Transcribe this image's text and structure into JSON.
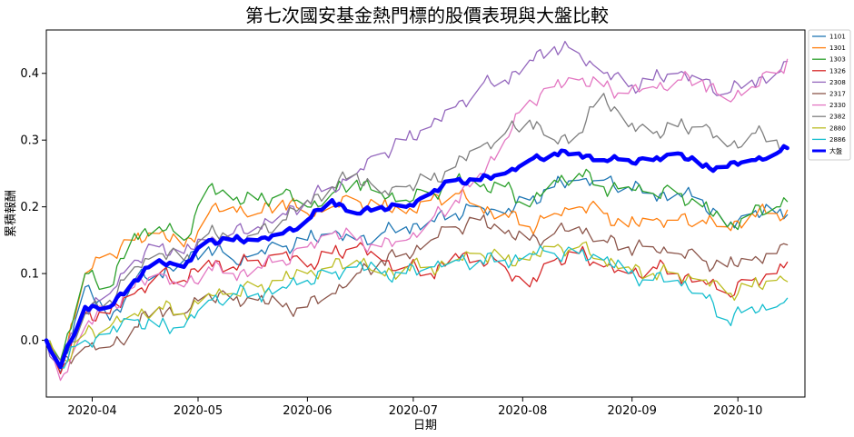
{
  "chart_data": {
    "type": "line",
    "title": "第七次國安基金熱門標的股價表現與大盤比較",
    "xlabel": "日期",
    "ylabel": "累積報酬",
    "x_ticks": [
      "2020-04",
      "2020-05",
      "2020-06",
      "2020-07",
      "2020-08",
      "2020-09",
      "2020-10"
    ],
    "y_ticks": [
      "0.0",
      "0.1",
      "0.2",
      "0.3",
      "0.4"
    ],
    "ylim": [
      -0.085,
      0.465
    ],
    "x_range": [
      "2020-03-19",
      "2020-10-20"
    ],
    "grid": false,
    "legend_position": "right",
    "dates": [
      "2020-03-19",
      "2020-03-23",
      "2020-03-30",
      "2020-04-06",
      "2020-04-13",
      "2020-04-20",
      "2020-04-27",
      "2020-05-04",
      "2020-05-11",
      "2020-05-18",
      "2020-05-25",
      "2020-06-01",
      "2020-06-08",
      "2020-06-15",
      "2020-06-22",
      "2020-06-29",
      "2020-07-06",
      "2020-07-13",
      "2020-07-20",
      "2020-07-27",
      "2020-08-03",
      "2020-08-10",
      "2020-08-17",
      "2020-08-24",
      "2020-08-31",
      "2020-09-07",
      "2020-09-14",
      "2020-09-21",
      "2020-09-28",
      "2020-10-05",
      "2020-10-12",
      "2020-10-15"
    ],
    "series": [
      {
        "name": "1101",
        "color": "#1f77b4",
        "width": 1.3,
        "values": [
          0.0,
          -0.05,
          0.08,
          0.03,
          0.09,
          0.1,
          0.12,
          0.14,
          0.12,
          0.13,
          0.14,
          0.15,
          0.16,
          0.15,
          0.16,
          0.17,
          0.18,
          0.19,
          0.2,
          0.19,
          0.21,
          0.23,
          0.24,
          0.24,
          0.23,
          0.22,
          0.22,
          0.21,
          0.17,
          0.19,
          0.19,
          0.188
        ]
      },
      {
        "name": "1301",
        "color": "#ff7f0e",
        "width": 1.3,
        "values": [
          0.0,
          -0.04,
          0.1,
          0.13,
          0.15,
          0.16,
          0.14,
          0.19,
          0.2,
          0.19,
          0.21,
          0.19,
          0.2,
          0.21,
          0.2,
          0.19,
          0.21,
          0.22,
          0.2,
          0.19,
          0.17,
          0.19,
          0.2,
          0.19,
          0.17,
          0.18,
          0.18,
          0.18,
          0.17,
          0.19,
          0.19,
          0.195
        ]
      },
      {
        "name": "1303",
        "color": "#2ca02c",
        "width": 1.3,
        "values": [
          0.0,
          -0.03,
          0.1,
          0.08,
          0.16,
          0.17,
          0.15,
          0.23,
          0.21,
          0.21,
          0.22,
          0.2,
          0.22,
          0.24,
          0.22,
          0.21,
          0.22,
          0.24,
          0.23,
          0.23,
          0.2,
          0.24,
          0.25,
          0.23,
          0.23,
          0.22,
          0.22,
          0.2,
          0.17,
          0.19,
          0.2,
          0.208
        ]
      },
      {
        "name": "1326",
        "color": "#d62728",
        "width": 1.3,
        "values": [
          0.0,
          -0.05,
          0.04,
          0.04,
          0.07,
          0.1,
          0.09,
          0.12,
          0.11,
          0.12,
          0.13,
          0.11,
          0.13,
          0.14,
          0.12,
          0.11,
          0.1,
          0.13,
          0.12,
          0.11,
          0.08,
          0.12,
          0.13,
          0.11,
          0.1,
          0.11,
          0.1,
          0.09,
          0.07,
          0.09,
          0.1,
          0.117
        ]
      },
      {
        "name": "2308",
        "color": "#9467bd",
        "width": 1.3,
        "values": [
          0.0,
          -0.04,
          0.05,
          0.07,
          0.12,
          0.14,
          0.13,
          0.15,
          0.16,
          0.17,
          0.19,
          0.21,
          0.23,
          0.25,
          0.28,
          0.3,
          0.32,
          0.35,
          0.38,
          0.39,
          0.42,
          0.44,
          0.43,
          0.4,
          0.38,
          0.39,
          0.4,
          0.39,
          0.37,
          0.39,
          0.4,
          0.418
        ]
      },
      {
        "name": "2317",
        "color": "#8c564b",
        "width": 1.3,
        "values": [
          0.0,
          -0.04,
          -0.01,
          -0.01,
          0.02,
          0.05,
          0.04,
          0.07,
          0.06,
          0.06,
          0.05,
          0.05,
          0.07,
          0.1,
          0.12,
          0.13,
          0.15,
          0.17,
          0.18,
          0.16,
          0.15,
          0.16,
          0.17,
          0.15,
          0.14,
          0.14,
          0.13,
          0.12,
          0.11,
          0.12,
          0.13,
          0.143
        ]
      },
      {
        "name": "2330",
        "color": "#e377c2",
        "width": 1.3,
        "values": [
          0.0,
          -0.06,
          0.02,
          0.05,
          0.08,
          0.1,
          0.08,
          0.11,
          0.1,
          0.11,
          0.12,
          0.14,
          0.16,
          0.15,
          0.14,
          0.15,
          0.18,
          0.21,
          0.25,
          0.3,
          0.36,
          0.38,
          0.39,
          0.38,
          0.37,
          0.38,
          0.39,
          0.39,
          0.36,
          0.38,
          0.4,
          0.421
        ]
      },
      {
        "name": "2382",
        "color": "#7f7f7f",
        "width": 1.3,
        "values": [
          0.0,
          -0.03,
          0.04,
          0.06,
          0.11,
          0.13,
          0.12,
          0.16,
          0.15,
          0.16,
          0.18,
          0.21,
          0.23,
          0.25,
          0.22,
          0.23,
          0.24,
          0.26,
          0.29,
          0.31,
          0.33,
          0.3,
          0.31,
          0.37,
          0.32,
          0.31,
          0.32,
          0.32,
          0.29,
          0.31,
          0.3,
          0.288
        ]
      },
      {
        "name": "2880",
        "color": "#bcbd22",
        "width": 1.3,
        "values": [
          0.0,
          -0.04,
          0.01,
          0.02,
          0.04,
          0.05,
          0.04,
          0.07,
          0.07,
          0.08,
          0.09,
          0.1,
          0.11,
          0.12,
          0.1,
          0.11,
          0.11,
          0.12,
          0.13,
          0.12,
          0.12,
          0.14,
          0.14,
          0.12,
          0.11,
          0.1,
          0.1,
          0.09,
          0.07,
          0.08,
          0.09,
          0.088
        ]
      },
      {
        "name": "2886",
        "color": "#17becf",
        "width": 1.3,
        "values": [
          0.0,
          -0.04,
          0.0,
          0.01,
          0.03,
          0.02,
          0.02,
          0.06,
          0.07,
          0.07,
          0.08,
          0.09,
          0.1,
          0.11,
          0.1,
          0.1,
          0.11,
          0.12,
          0.12,
          0.12,
          0.13,
          0.13,
          0.13,
          0.12,
          0.1,
          0.09,
          0.09,
          0.07,
          0.03,
          0.05,
          0.05,
          0.063
        ]
      },
      {
        "name": "大盤",
        "color": "#0000ff",
        "width": 4.5,
        "values": [
          0.0,
          -0.04,
          0.05,
          0.05,
          0.09,
          0.12,
          0.11,
          0.15,
          0.15,
          0.15,
          0.16,
          0.18,
          0.21,
          0.19,
          0.2,
          0.2,
          0.22,
          0.24,
          0.24,
          0.25,
          0.27,
          0.28,
          0.28,
          0.27,
          0.27,
          0.27,
          0.28,
          0.26,
          0.26,
          0.27,
          0.28,
          0.288
        ]
      }
    ]
  }
}
